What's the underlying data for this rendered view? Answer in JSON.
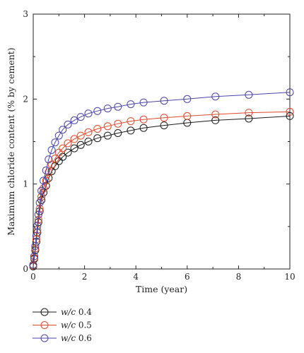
{
  "chart_data": {
    "type": "line",
    "xlabel": "Time (year)",
    "ylabel": "Maximum chloride content (% by cement)",
    "xlim": [
      0,
      10
    ],
    "ylim": [
      0,
      3
    ],
    "xticks": [
      0,
      2,
      4,
      6,
      8,
      10
    ],
    "yticks": [
      0,
      1,
      2,
      3
    ],
    "grid": false,
    "legend_position": "bottom-left-outside",
    "series": [
      {
        "name": "w/c 0.4",
        "name_italic": "w/c",
        "name_rest": " 0.4",
        "color": "#1a1a1a",
        "x": [
          0,
          0.04,
          0.08,
          0.12,
          0.16,
          0.2,
          0.25,
          0.32,
          0.4,
          0.5,
          0.6,
          0.72,
          0.85,
          1.0,
          1.15,
          1.35,
          1.6,
          1.85,
          2.15,
          2.5,
          2.9,
          3.3,
          3.8,
          4.3,
          5.1,
          6.0,
          7.1,
          8.4,
          10.0
        ],
        "y": [
          0.03,
          0.12,
          0.22,
          0.32,
          0.43,
          0.55,
          0.68,
          0.81,
          0.9,
          0.98,
          1.07,
          1.15,
          1.21,
          1.27,
          1.32,
          1.37,
          1.42,
          1.46,
          1.5,
          1.54,
          1.57,
          1.6,
          1.63,
          1.66,
          1.69,
          1.72,
          1.75,
          1.77,
          1.8
        ]
      },
      {
        "name": "w/c 0.5",
        "name_italic": "w/c",
        "name_rest": " 0.5",
        "color": "#e0492b",
        "x": [
          0,
          0.04,
          0.08,
          0.12,
          0.16,
          0.2,
          0.25,
          0.32,
          0.4,
          0.5,
          0.6,
          0.72,
          0.85,
          1.0,
          1.15,
          1.35,
          1.6,
          1.85,
          2.15,
          2.5,
          2.9,
          3.3,
          3.8,
          4.3,
          5.1,
          6.0,
          7.1,
          8.4,
          10.0
        ],
        "y": [
          0.04,
          0.13,
          0.24,
          0.35,
          0.46,
          0.58,
          0.71,
          0.85,
          0.95,
          1.04,
          1.14,
          1.23,
          1.3,
          1.37,
          1.42,
          1.48,
          1.53,
          1.57,
          1.61,
          1.65,
          1.68,
          1.71,
          1.74,
          1.76,
          1.78,
          1.8,
          1.82,
          1.84,
          1.85
        ]
      },
      {
        "name": "w/c 0.6",
        "name_italic": "w/c",
        "name_rest": " 0.6",
        "color": "#4a44aa",
        "x": [
          0,
          0.04,
          0.08,
          0.12,
          0.16,
          0.2,
          0.25,
          0.32,
          0.4,
          0.5,
          0.6,
          0.72,
          0.85,
          1.0,
          1.15,
          1.35,
          1.6,
          1.85,
          2.15,
          2.5,
          2.9,
          3.3,
          3.8,
          4.3,
          5.1,
          6.0,
          7.1,
          8.4,
          10.0
        ],
        "y": [
          0.05,
          0.15,
          0.27,
          0.39,
          0.51,
          0.64,
          0.78,
          0.92,
          1.04,
          1.16,
          1.29,
          1.4,
          1.49,
          1.57,
          1.64,
          1.7,
          1.75,
          1.79,
          1.83,
          1.86,
          1.89,
          1.91,
          1.94,
          1.96,
          1.98,
          2.0,
          2.03,
          2.05,
          2.08
        ]
      }
    ]
  }
}
